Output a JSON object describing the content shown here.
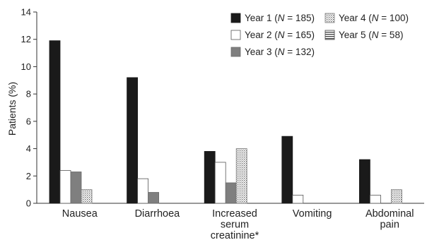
{
  "chart_data": {
    "type": "bar",
    "title": "",
    "xlabel": "",
    "ylabel": "Patients (%)",
    "ylim": [
      0,
      14
    ],
    "yticks": [
      0,
      2,
      4,
      6,
      8,
      10,
      12,
      14
    ],
    "grid": false,
    "legend_position": "top-right",
    "categories": [
      [
        "Nausea"
      ],
      [
        "Diarrhoea"
      ],
      [
        "Increased",
        "serum",
        "creatinine*"
      ],
      [
        "Vomiting"
      ],
      [
        "Abdominal",
        "pain"
      ]
    ],
    "series": [
      {
        "name": "Year 1",
        "n": "185",
        "pattern": "solid-black",
        "values": [
          11.9,
          9.2,
          3.8,
          4.9,
          3.2
        ]
      },
      {
        "name": "Year 2",
        "n": "165",
        "pattern": "white",
        "values": [
          2.4,
          1.8,
          3.0,
          0.6,
          0.6
        ]
      },
      {
        "name": "Year 3",
        "n": "132",
        "pattern": "grey",
        "values": [
          2.3,
          0.8,
          1.5,
          0,
          0
        ]
      },
      {
        "name": "Year 4",
        "n": "100",
        "pattern": "dotted",
        "values": [
          1.0,
          0,
          4.0,
          0,
          1.0
        ]
      },
      {
        "name": "Year 5",
        "n": "58",
        "pattern": "striped",
        "values": [
          0,
          0,
          0,
          0,
          0
        ]
      }
    ],
    "colors": {
      "black": "#1a1a1a",
      "grey": "#7f7f7f",
      "white": "#ffffff",
      "axis": "#333333"
    }
  }
}
